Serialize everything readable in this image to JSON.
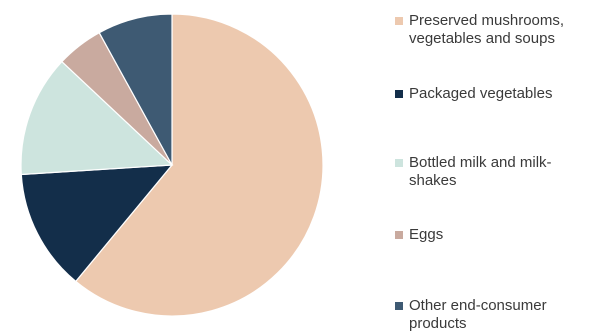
{
  "chart_data": {
    "type": "pie",
    "title": "",
    "legend_position": "right",
    "slices": [
      {
        "label": "Preserved mushrooms, vegetables and soups",
        "value": 61,
        "color": "#EDC9AF"
      },
      {
        "label": "Packaged vegetables",
        "value": 13,
        "color": "#132E4A"
      },
      {
        "label": "Bottled milk and milk-shakes",
        "value": 13,
        "color": "#CDE4DE"
      },
      {
        "label": "Eggs",
        "value": 5,
        "color": "#C9AA9F"
      },
      {
        "label": "Other end-consumer products",
        "value": 8,
        "color": "#3E5A73"
      }
    ]
  }
}
